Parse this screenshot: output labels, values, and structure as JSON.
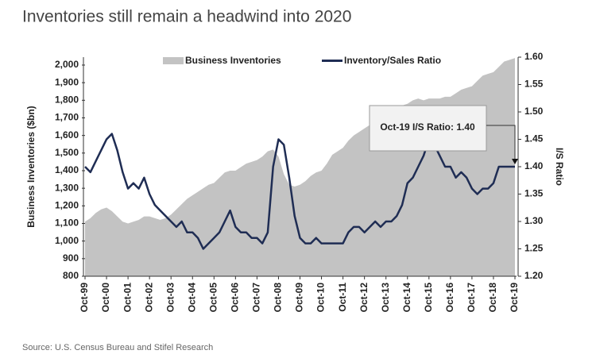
{
  "chart_data": {
    "type": "area-line",
    "title": "Inventories still remain a headwind into 2020",
    "source": "Source: U.S. Census Bureau and Stifel Research",
    "y_label": "Business Inventories ($bn)",
    "y2_label": "I/S Ratio",
    "annotation": "Oct-19 I/S Ratio: 1.40",
    "legend": "top",
    "categories": [
      "Oct-99",
      null,
      null,
      null,
      "Oct-00",
      null,
      null,
      null,
      "Oct-01",
      null,
      null,
      null,
      "Oct-02",
      null,
      null,
      null,
      "Oct-03",
      null,
      null,
      null,
      "Oct-04",
      null,
      null,
      null,
      "Oct-05",
      null,
      null,
      null,
      "Oct-06",
      null,
      null,
      null,
      "Oct-07",
      null,
      null,
      null,
      "Oct-08",
      null,
      null,
      null,
      "Oct-09",
      null,
      null,
      null,
      "Oct-10",
      null,
      null,
      null,
      "Oct-11",
      null,
      null,
      null,
      "Oct-12",
      null,
      null,
      null,
      "Oct-13",
      null,
      null,
      null,
      "Oct-14",
      null,
      null,
      null,
      "Oct-15",
      null,
      null,
      null,
      "Oct-16",
      null,
      null,
      null,
      "Oct-17",
      null,
      null,
      null,
      "Oct-18",
      null,
      null,
      null,
      "Oct-19"
    ],
    "series": [
      {
        "name": "Business Inventories",
        "color": "#c3c3c3",
        "axis": "y",
        "kind": "area",
        "values": [
          1110,
          1130,
          1160,
          1180,
          1190,
          1170,
          1140,
          1110,
          1100,
          1110,
          1120,
          1140,
          1140,
          1130,
          1120,
          1130,
          1150,
          1180,
          1210,
          1240,
          1260,
          1280,
          1300,
          1320,
          1330,
          1360,
          1390,
          1400,
          1400,
          1420,
          1440,
          1450,
          1460,
          1480,
          1510,
          1520,
          1480,
          1380,
          1320,
          1310,
          1320,
          1340,
          1370,
          1390,
          1400,
          1440,
          1490,
          1510,
          1530,
          1570,
          1600,
          1620,
          1640,
          1660,
          1680,
          1690,
          1700,
          1730,
          1760,
          1770,
          1780,
          1800,
          1810,
          1800,
          1810,
          1810,
          1810,
          1820,
          1820,
          1840,
          1860,
          1870,
          1880,
          1910,
          1940,
          1950,
          1960,
          1990,
          2020,
          2030,
          2040
        ]
      },
      {
        "name": "Inventory/Sales Ratio",
        "color": "#1f2d54",
        "axis": "y2",
        "kind": "line",
        "values": [
          1.4,
          1.39,
          1.41,
          1.43,
          1.45,
          1.46,
          1.43,
          1.39,
          1.36,
          1.37,
          1.36,
          1.38,
          1.35,
          1.33,
          1.32,
          1.31,
          1.3,
          1.29,
          1.3,
          1.28,
          1.28,
          1.27,
          1.25,
          1.26,
          1.27,
          1.28,
          1.3,
          1.32,
          1.29,
          1.28,
          1.28,
          1.27,
          1.27,
          1.26,
          1.28,
          1.4,
          1.45,
          1.44,
          1.38,
          1.31,
          1.27,
          1.26,
          1.26,
          1.27,
          1.26,
          1.26,
          1.26,
          1.26,
          1.26,
          1.28,
          1.29,
          1.29,
          1.28,
          1.29,
          1.3,
          1.29,
          1.3,
          1.3,
          1.31,
          1.33,
          1.37,
          1.38,
          1.4,
          1.42,
          1.45,
          1.44,
          1.42,
          1.4,
          1.4,
          1.38,
          1.39,
          1.38,
          1.36,
          1.35,
          1.36,
          1.36,
          1.37,
          1.4,
          1.4,
          1.4,
          1.4
        ]
      }
    ],
    "ylim": [
      800,
      2045
    ],
    "yticks": [
      800,
      900,
      {
        "value": 1000,
        "label": "1,000"
      },
      {
        "value": 1100,
        "label": "1,100"
      },
      {
        "value": 1200,
        "label": "1,200"
      },
      {
        "value": 1300,
        "label": "1,300"
      },
      {
        "value": 1400,
        "label": "1,400"
      },
      {
        "value": 1500,
        "label": "1,500"
      },
      {
        "value": 1600,
        "label": "1,600"
      },
      {
        "value": 1700,
        "label": "1,700"
      },
      {
        "value": 1800,
        "label": "1,800"
      },
      {
        "value": 1900,
        "label": "1,900"
      },
      {
        "value": 2000,
        "label": "2,000"
      }
    ],
    "y2lim": [
      1.2,
      1.6
    ],
    "y2ticks": [
      {
        "value": 1.2,
        "label": "1.20"
      },
      1.25,
      {
        "value": 1.3,
        "label": "1.30"
      },
      1.35,
      {
        "value": 1.4,
        "label": "1.40"
      },
      1.45,
      {
        "value": 1.5,
        "label": "1.50"
      },
      1.55,
      {
        "value": 1.6,
        "label": "1.60"
      }
    ]
  }
}
